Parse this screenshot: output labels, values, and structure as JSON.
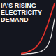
{
  "chart_data": {
    "type": "line",
    "title": "IA'S RISING ELECTRICITY DEMAND",
    "categories": [
      null,
      null,
      null,
      null,
      null,
      null,
      null,
      null,
      null,
      null,
      null
    ],
    "series": [
      {
        "color": "#e0312b",
        "values": [
          2,
          3,
          5,
          8,
          12,
          18,
          28,
          42,
          60,
          80,
          100
        ]
      },
      {
        "color": "#e8e8e8",
        "values": [
          1,
          1,
          2,
          2,
          3,
          4,
          6,
          10,
          18,
          35,
          70
        ]
      }
    ],
    "ylim": [
      0,
      100
    ],
    "yticks": [
      0,
      25,
      50,
      75,
      100
    ],
    "grid": false,
    "tick_labels": false
  }
}
